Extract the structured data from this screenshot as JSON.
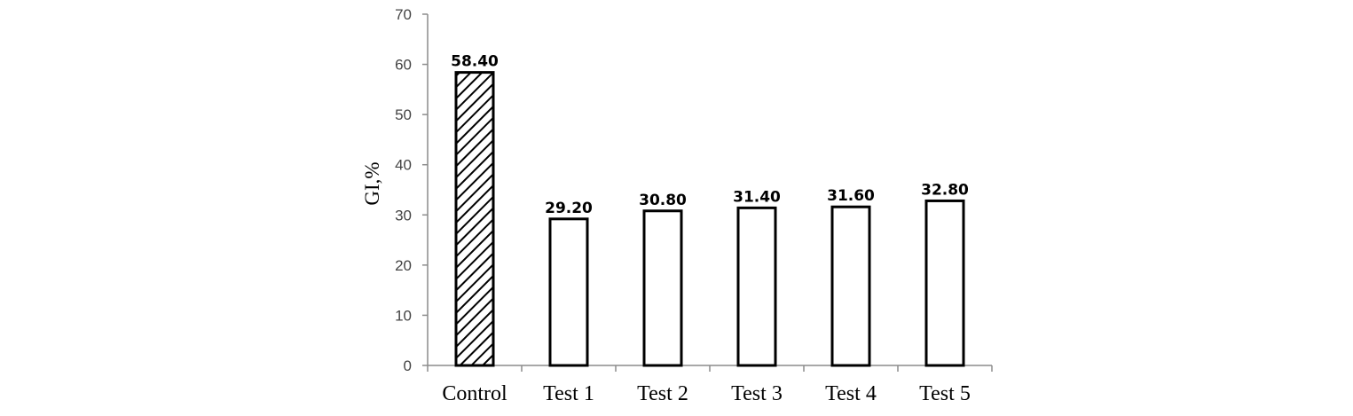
{
  "chart_data": {
    "type": "bar",
    "title": "",
    "xlabel": "",
    "ylabel": "GI,%",
    "categories": [
      "Control",
      "Test 1",
      "Test 2",
      "Test 3",
      "Test 4",
      "Test 5"
    ],
    "values": [
      58.4,
      29.2,
      30.8,
      31.4,
      31.6,
      32.8
    ],
    "value_labels": [
      "58.40",
      "29.20",
      "30.80",
      "31.40",
      "31.60",
      "32.80"
    ],
    "ylim": [
      0,
      70
    ],
    "yticks": [
      0,
      10,
      20,
      30,
      40,
      50,
      60,
      70
    ],
    "grid": false,
    "legend": "none",
    "bar_fills": [
      "hatched",
      "white",
      "white",
      "white",
      "white",
      "white"
    ],
    "colors": {
      "bar_edge": "#000000",
      "axis": "#8c8c8c",
      "bar_fill": "#ffffff"
    }
  }
}
